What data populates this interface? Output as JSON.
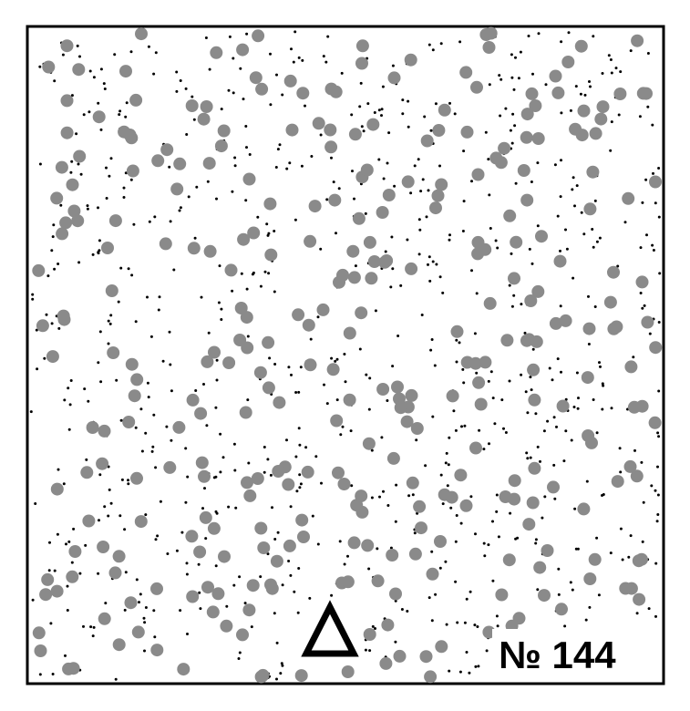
{
  "card": {
    "label": "№ 144"
  },
  "colors": {
    "large_dot": "#8a8a8a",
    "small_dot": "#000000",
    "frame": "#000000",
    "background": "#ffffff"
  },
  "marker_icon": "triangle-outline-icon"
}
